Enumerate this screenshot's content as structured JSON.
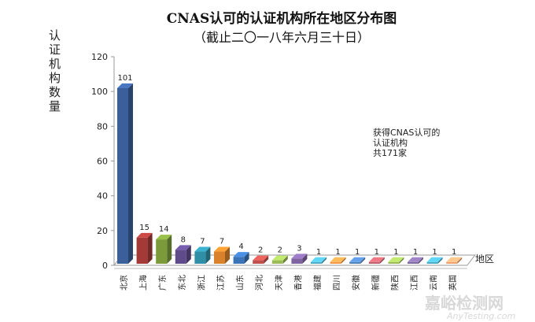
{
  "chart_data": {
    "type": "bar",
    "title": "CNAS认可的认证机构所在地区分布图",
    "subtitle": "（截止二〇一八年六月三十日）",
    "ylabel": "认证机构数量",
    "xlabel": "地区",
    "ylim": [
      0,
      120
    ],
    "yticks": [
      0,
      20,
      40,
      60,
      80,
      100,
      120
    ],
    "categories": [
      "北京",
      "上海",
      "广东",
      "东北",
      "浙江",
      "江苏",
      "山东",
      "河北",
      "天津",
      "香港",
      "福建",
      "四川",
      "安徽",
      "新疆",
      "陕西",
      "江西",
      "云南",
      "英国"
    ],
    "values": [
      101,
      15,
      14,
      8,
      7,
      7,
      4,
      2,
      2,
      3,
      1,
      1,
      1,
      1,
      1,
      1,
      1,
      1
    ],
    "colors": [
      "#3a5f9a",
      "#a33a37",
      "#7b9a3a",
      "#5f4a8a",
      "#2f8fa6",
      "#d9822b",
      "#3b74b8",
      "#c0504d",
      "#9bbb59",
      "#8064a2",
      "#4bacc6",
      "#f79646",
      "#4f81bd",
      "#c0606a",
      "#9bbb59",
      "#7f6aa0",
      "#4bacc6",
      "#f0a070"
    ],
    "annotation": [
      "获得CNAS认可的",
      "认证机构",
      "共171家"
    ],
    "grid": false,
    "style": "3d-column"
  },
  "watermark": {
    "cn": "嘉峪检测网",
    "en": "AnyTesting.com"
  }
}
